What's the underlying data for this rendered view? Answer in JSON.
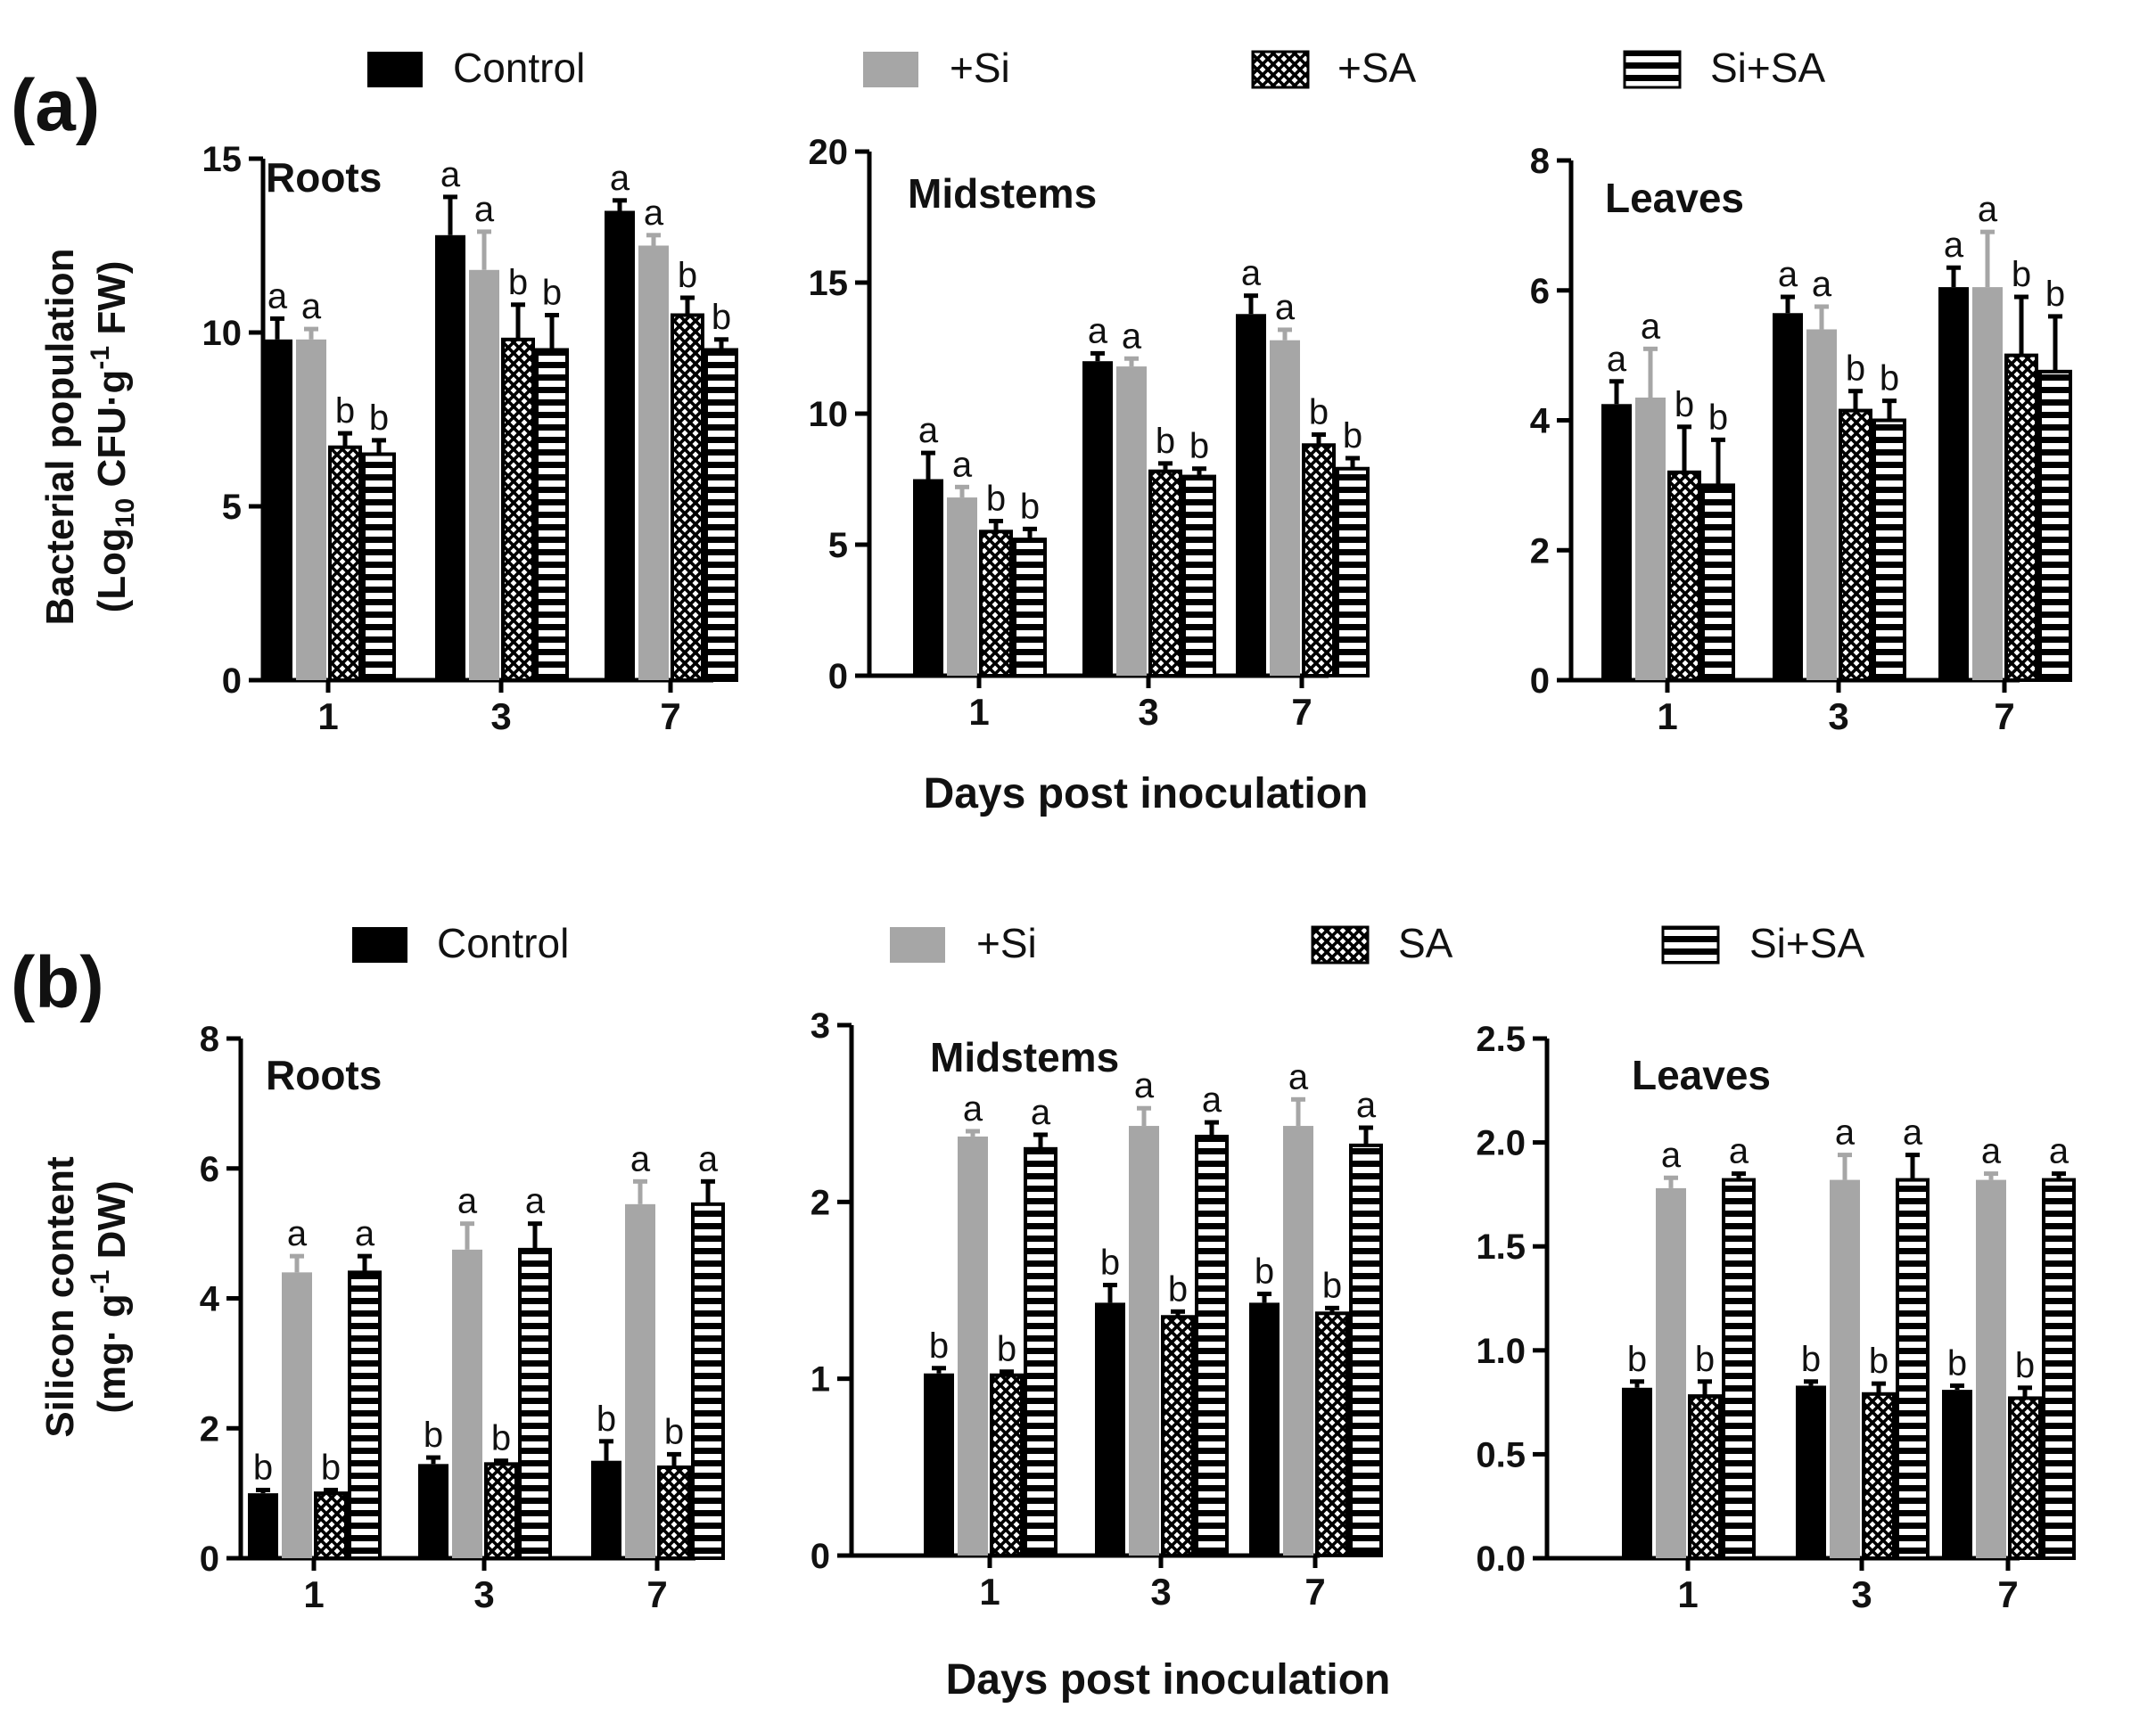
{
  "colors": {
    "control": "#000000",
    "si": "#a6a6a6",
    "sa_pattern": "crosshatch",
    "sisa_pattern": "horizontal-stripes",
    "axis": "#000000"
  },
  "panels": [
    {
      "id": "a",
      "label": "(a)",
      "x_label": "Days post inoculation",
      "y_label_line1": "Bacterial population",
      "y_label_line2_prefix": "(Log",
      "y_label_line2_sub": "10",
      "y_label_line2_mid": " CFU·g",
      "y_label_line2_sup": "-1",
      "y_label_line2_suffix": " FW)",
      "legend": [
        "Control",
        "+Si",
        "+SA",
        "Si+SA"
      ]
    },
    {
      "id": "b",
      "label": "(b)",
      "x_label": "Days post inoculation",
      "y_label_line1": "Silicon content",
      "y_label_line2_prefix": "(mg· g",
      "y_label_line2_sub": "",
      "y_label_line2_mid": "",
      "y_label_line2_sup": "-1",
      "y_label_line2_suffix": " DW)",
      "legend": [
        "Control",
        "+Si",
        "SA",
        "Si+SA"
      ]
    }
  ],
  "chart_data": [
    {
      "type": "bar",
      "panel": "a",
      "title": "Roots",
      "categories": [
        "1",
        "3",
        "7"
      ],
      "ylim": [
        0,
        15
      ],
      "yticks": [
        0,
        5,
        10,
        15
      ],
      "series": [
        {
          "name": "Control",
          "values": [
            9.8,
            12.8,
            13.5
          ],
          "errors": [
            0.6,
            1.1,
            0.3
          ],
          "letters": [
            "a",
            "a",
            "a"
          ]
        },
        {
          "name": "+Si",
          "values": [
            9.8,
            11.8,
            12.5
          ],
          "errors": [
            0.3,
            1.1,
            0.3
          ],
          "letters": [
            "a",
            "a",
            "a"
          ]
        },
        {
          "name": "+SA",
          "values": [
            6.7,
            9.8,
            10.5
          ],
          "errors": [
            0.4,
            1.0,
            0.5
          ],
          "letters": [
            "b",
            "b",
            "b"
          ]
        },
        {
          "name": "Si+SA",
          "values": [
            6.5,
            9.5,
            9.5
          ],
          "errors": [
            0.4,
            1.0,
            0.3
          ],
          "letters": [
            "b",
            "b",
            "b"
          ]
        }
      ]
    },
    {
      "type": "bar",
      "panel": "a",
      "title": "Midstems",
      "categories": [
        "1",
        "3",
        "7"
      ],
      "ylim": [
        0,
        20
      ],
      "yticks": [
        0,
        5,
        10,
        15,
        20
      ],
      "series": [
        {
          "name": "Control",
          "values": [
            7.5,
            12.0,
            13.8
          ],
          "errors": [
            1.0,
            0.3,
            0.7
          ],
          "letters": [
            "a",
            "a",
            "a"
          ]
        },
        {
          "name": "+Si",
          "values": [
            6.8,
            11.8,
            12.8
          ],
          "errors": [
            0.4,
            0.3,
            0.4
          ],
          "letters": [
            "a",
            "a",
            "a"
          ]
        },
        {
          "name": "+SA",
          "values": [
            5.5,
            7.8,
            8.8
          ],
          "errors": [
            0.4,
            0.3,
            0.4
          ],
          "letters": [
            "b",
            "b",
            "b"
          ]
        },
        {
          "name": "Si+SA",
          "values": [
            5.2,
            7.6,
            7.9
          ],
          "errors": [
            0.4,
            0.3,
            0.4
          ],
          "letters": [
            "b",
            "b",
            "b"
          ]
        }
      ]
    },
    {
      "type": "bar",
      "panel": "a",
      "title": "Leaves",
      "categories": [
        "1",
        "3",
        "7"
      ],
      "ylim": [
        0,
        8
      ],
      "yticks": [
        0,
        2,
        4,
        6,
        8
      ],
      "series": [
        {
          "name": "Control",
          "values": [
            4.25,
            5.65,
            6.05
          ],
          "errors": [
            0.35,
            0.25,
            0.3
          ],
          "letters": [
            "a",
            "a",
            "a"
          ]
        },
        {
          "name": "+Si",
          "values": [
            4.35,
            5.4,
            6.05
          ],
          "errors": [
            0.75,
            0.35,
            0.85
          ],
          "letters": [
            "a",
            "a",
            "a"
          ]
        },
        {
          "name": "+SA",
          "values": [
            3.2,
            4.15,
            5.0
          ],
          "errors": [
            0.7,
            0.3,
            0.9
          ],
          "letters": [
            "b",
            "b",
            "b"
          ]
        },
        {
          "name": "Si+SA",
          "values": [
            3.0,
            4.0,
            4.75
          ],
          "errors": [
            0.7,
            0.3,
            0.85
          ],
          "letters": [
            "b",
            "b",
            "b"
          ]
        }
      ]
    },
    {
      "type": "bar",
      "panel": "b",
      "title": "Roots",
      "categories": [
        "1",
        "3",
        "7"
      ],
      "ylim": [
        0,
        8
      ],
      "yticks": [
        0,
        2,
        4,
        6,
        8
      ],
      "series": [
        {
          "name": "Control",
          "values": [
            1.0,
            1.45,
            1.5
          ],
          "errors": [
            0.05,
            0.1,
            0.3
          ],
          "letters": [
            "b",
            "b",
            "b"
          ]
        },
        {
          "name": "+Si",
          "values": [
            4.4,
            4.75,
            5.45
          ],
          "errors": [
            0.25,
            0.4,
            0.35
          ],
          "letters": [
            "a",
            "a",
            "a"
          ]
        },
        {
          "name": "SA",
          "values": [
            1.0,
            1.45,
            1.4
          ],
          "errors": [
            0.05,
            0.05,
            0.2
          ],
          "letters": [
            "b",
            "b",
            "b"
          ]
        },
        {
          "name": "Si+SA",
          "values": [
            4.4,
            4.75,
            5.45
          ],
          "errors": [
            0.25,
            0.4,
            0.35
          ],
          "letters": [
            "a",
            "a",
            "a"
          ]
        }
      ]
    },
    {
      "type": "bar",
      "panel": "b",
      "title": "Midstems",
      "categories": [
        "1",
        "3",
        "7"
      ],
      "ylim": [
        0,
        3
      ],
      "yticks": [
        0,
        1,
        2,
        3
      ],
      "series": [
        {
          "name": "Control",
          "values": [
            1.03,
            1.43,
            1.43
          ],
          "errors": [
            0.03,
            0.1,
            0.05
          ],
          "letters": [
            "b",
            "b",
            "b"
          ]
        },
        {
          "name": "+Si",
          "values": [
            2.37,
            2.43,
            2.43
          ],
          "errors": [
            0.03,
            0.1,
            0.15
          ],
          "letters": [
            "a",
            "a",
            "a"
          ]
        },
        {
          "name": "SA",
          "values": [
            1.02,
            1.35,
            1.37
          ],
          "errors": [
            0.02,
            0.03,
            0.03
          ],
          "letters": [
            "b",
            "b",
            "b"
          ]
        },
        {
          "name": "Si+SA",
          "values": [
            2.3,
            2.37,
            2.32
          ],
          "errors": [
            0.08,
            0.08,
            0.1
          ],
          "letters": [
            "a",
            "a",
            "a"
          ]
        }
      ]
    },
    {
      "type": "bar",
      "panel": "b",
      "title": "Leaves",
      "categories": [
        "1",
        "3",
        "7"
      ],
      "ylim": [
        0,
        2.5
      ],
      "yticks": [
        "0.0",
        "0.5",
        "1.0",
        "1.5",
        "2.0",
        "2.5"
      ],
      "series": [
        {
          "name": "Control",
          "values": [
            0.82,
            0.83,
            0.81
          ],
          "errors": [
            0.03,
            0.02,
            0.02
          ],
          "letters": [
            "b",
            "b",
            "b"
          ]
        },
        {
          "name": "+Si",
          "values": [
            1.78,
            1.82,
            1.82
          ],
          "errors": [
            0.05,
            0.12,
            0.03
          ],
          "letters": [
            "a",
            "a",
            "a"
          ]
        },
        {
          "name": "SA",
          "values": [
            0.78,
            0.79,
            0.77
          ],
          "errors": [
            0.07,
            0.05,
            0.05
          ],
          "letters": [
            "b",
            "b",
            "b"
          ]
        },
        {
          "name": "Si+SA",
          "values": [
            1.82,
            1.82,
            1.82
          ],
          "errors": [
            0.03,
            0.12,
            0.03
          ],
          "letters": [
            "a",
            "a",
            "a"
          ]
        }
      ]
    }
  ]
}
